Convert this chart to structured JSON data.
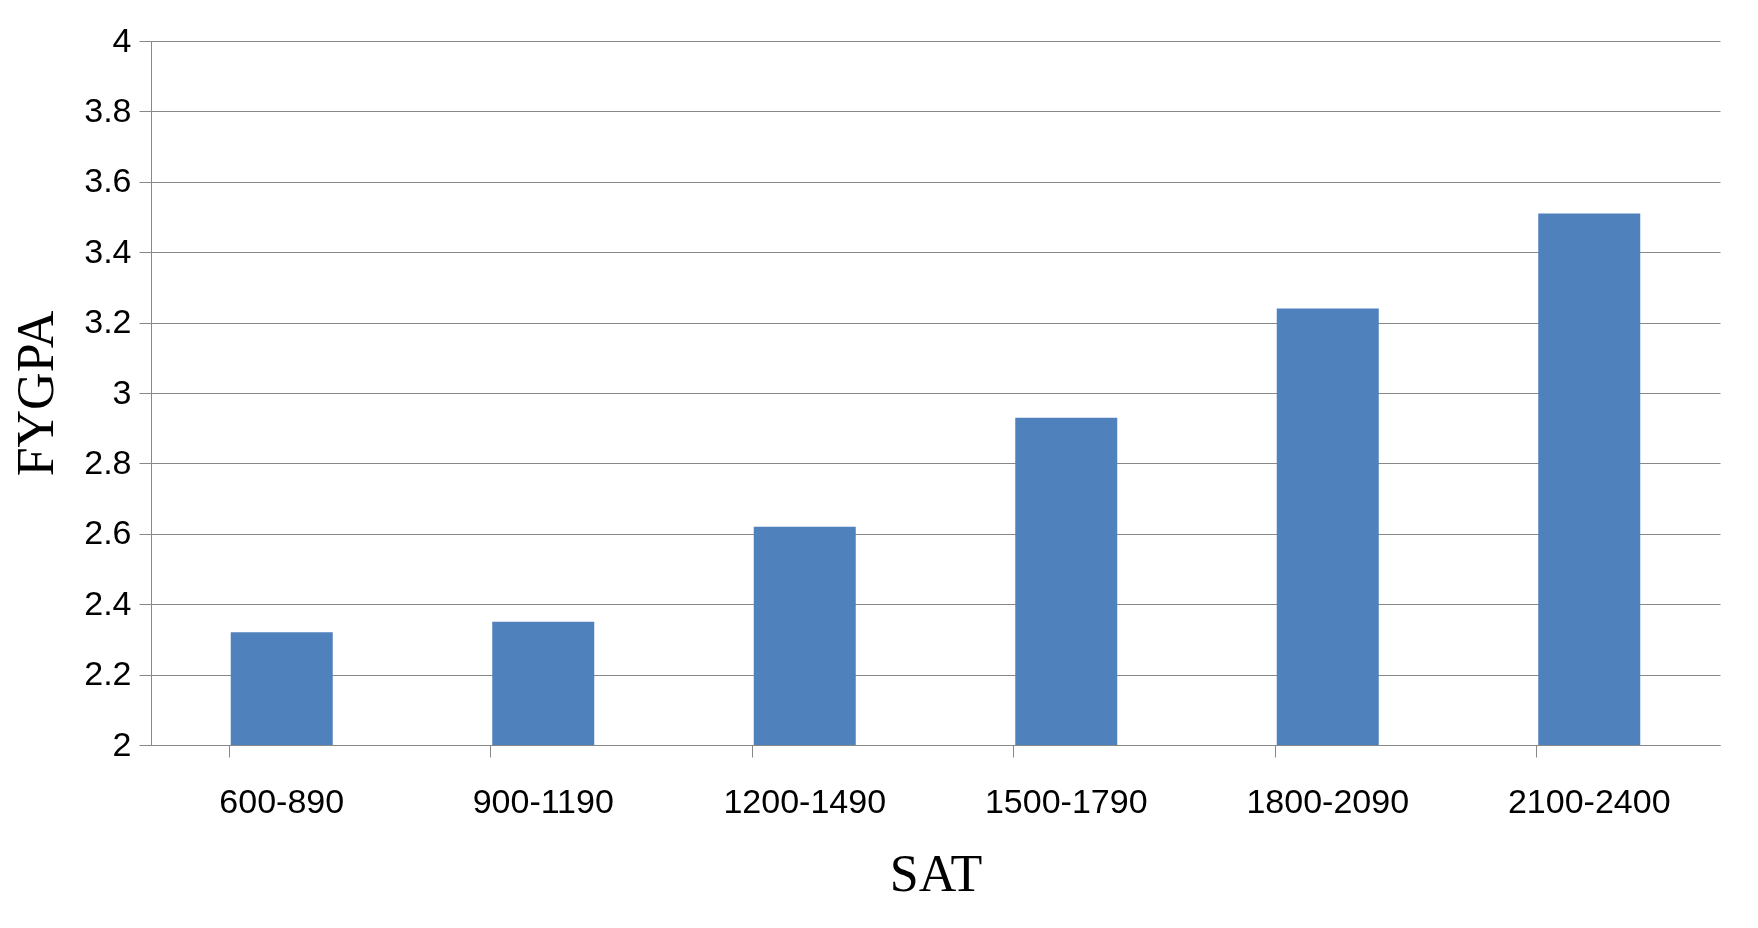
{
  "chart_data": {
    "type": "bar",
    "xlabel": "SAT",
    "ylabel": "FYGPA",
    "categories": [
      "600-890",
      "900-1190",
      "1200-1490",
      "1500-1790",
      "1800-2090",
      "2100-2400"
    ],
    "values": [
      2.32,
      2.35,
      2.62,
      2.93,
      3.24,
      3.51
    ],
    "color": "#4f81bd",
    "ylim": [
      2,
      4
    ],
    "yticks": [
      2,
      2.2,
      2.4,
      2.6,
      2.8,
      3,
      3.2,
      3.4,
      3.6,
      3.8,
      4
    ],
    "grid": "y"
  }
}
